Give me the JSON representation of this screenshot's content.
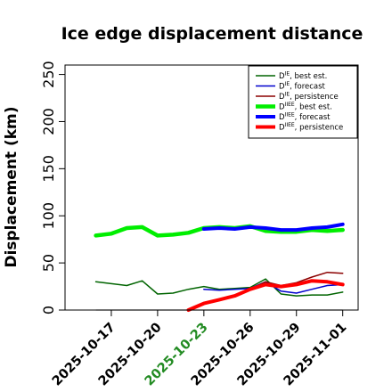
{
  "chart_data": {
    "type": "line",
    "title": "Ice edge displacement distance",
    "xlabel": "",
    "ylabel": "Displacement (km)",
    "ylim": [
      0,
      260
    ],
    "yticks": [
      0,
      50,
      100,
      150,
      200,
      250
    ],
    "xlim": [
      "2025-10-14",
      "2025-11-02"
    ],
    "xticks": [
      "2025-10-17",
      "2025-10-20",
      "2025-10-23",
      "2025-10-26",
      "2025-10-29",
      "2025-11-01"
    ],
    "highlight_tick": "2025-10-23",
    "highlight_color": "#228b22",
    "legend_position": "top-right",
    "baseline": {
      "color": "#808080",
      "from": "2025-10-16",
      "to": "2025-11-01",
      "y": 0
    },
    "series": [
      {
        "name": "D^IE, best est.",
        "color": "#006400",
        "width": 1.5,
        "x": [
          "2025-10-16",
          "2025-10-17",
          "2025-10-18",
          "2025-10-19",
          "2025-10-20",
          "2025-10-21",
          "2025-10-22",
          "2025-10-23",
          "2025-10-24",
          "2025-10-25",
          "2025-10-26",
          "2025-10-27",
          "2025-10-28",
          "2025-10-29",
          "2025-10-30",
          "2025-10-31",
          "2025-11-01"
        ],
        "y": [
          30,
          28,
          26,
          31,
          17,
          18,
          22,
          25,
          22,
          23,
          24,
          33,
          17,
          15,
          16,
          16,
          19
        ]
      },
      {
        "name": "D^IE, forecast",
        "color": "#0000cd",
        "width": 1.5,
        "x": [
          "2025-10-23",
          "2025-10-24",
          "2025-10-25",
          "2025-10-26",
          "2025-10-27",
          "2025-10-28",
          "2025-10-29",
          "2025-10-30",
          "2025-10-31",
          "2025-11-01"
        ],
        "y": [
          22,
          21,
          22,
          23,
          30,
          20,
          18,
          22,
          26,
          27
        ]
      },
      {
        "name": "D^IE, persistence",
        "color": "#8b0000",
        "width": 1.5,
        "x": [
          "2025-10-22",
          "2025-10-23",
          "2025-10-24",
          "2025-10-25",
          "2025-10-26",
          "2025-10-27",
          "2025-10-28",
          "2025-10-29",
          "2025-10-30",
          "2025-10-31",
          "2025-11-01"
        ],
        "y": [
          0,
          7,
          11,
          15,
          22,
          30,
          26,
          29,
          35,
          40,
          39
        ]
      },
      {
        "name": "D^IIEE, best est.",
        "color": "#00ee00",
        "width": 4.5,
        "x": [
          "2025-10-16",
          "2025-10-17",
          "2025-10-18",
          "2025-10-19",
          "2025-10-20",
          "2025-10-21",
          "2025-10-22",
          "2025-10-23",
          "2025-10-24",
          "2025-10-25",
          "2025-10-26",
          "2025-10-27",
          "2025-10-28",
          "2025-10-29",
          "2025-10-30",
          "2025-10-31",
          "2025-11-01"
        ],
        "y": [
          79,
          81,
          87,
          88,
          79,
          80,
          82,
          87,
          88,
          87,
          89,
          84,
          83,
          83,
          85,
          84,
          85
        ]
      },
      {
        "name": "D^IIEE, forecast",
        "color": "#0000ff",
        "width": 4,
        "x": [
          "2025-10-23",
          "2025-10-24",
          "2025-10-25",
          "2025-10-26",
          "2025-10-27",
          "2025-10-28",
          "2025-10-29",
          "2025-10-30",
          "2025-10-31",
          "2025-11-01"
        ],
        "y": [
          86,
          87,
          86,
          88,
          87,
          85,
          85,
          87,
          88,
          91
        ]
      },
      {
        "name": "D^IIEE, persistence",
        "color": "#ff0000",
        "width": 4,
        "x": [
          "2025-10-22",
          "2025-10-23",
          "2025-10-24",
          "2025-10-25",
          "2025-10-26",
          "2025-10-27",
          "2025-10-28",
          "2025-10-29",
          "2025-10-30",
          "2025-10-31",
          "2025-11-01"
        ],
        "y": [
          0,
          7,
          11,
          15,
          22,
          27,
          25,
          27,
          31,
          30,
          27
        ]
      }
    ],
    "legend": [
      {
        "base": "D",
        "sup": "IE",
        "text": ", best est.",
        "color": "#006400",
        "width": 1.5
      },
      {
        "base": "D",
        "sup": "IE",
        "text": ", forecast",
        "color": "#0000cd",
        "width": 1.5
      },
      {
        "base": "D",
        "sup": "IE",
        "text": ", persistence",
        "color": "#8b0000",
        "width": 1.5
      },
      {
        "base": "D",
        "sup": "IIEE",
        "text": ", best est.",
        "color": "#00ee00",
        "width": 4.5
      },
      {
        "base": "D",
        "sup": "IIEE",
        "text": ", forecast",
        "color": "#0000ff",
        "width": 4
      },
      {
        "base": "D",
        "sup": "IIEE",
        "text": ", persistence",
        "color": "#ff0000",
        "width": 4
      }
    ]
  }
}
